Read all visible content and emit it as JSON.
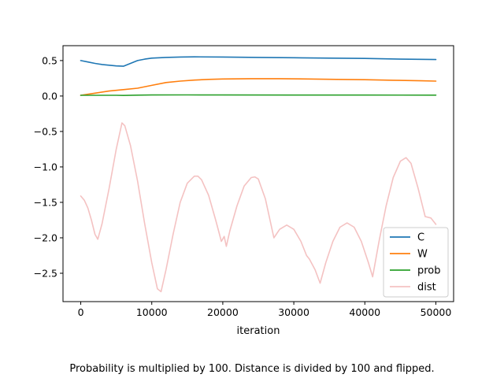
{
  "caption": "Probability is multiplied by 100. Distance is divided by 100 and flipped.",
  "chart_data": {
    "type": "line",
    "xlabel": "iteration",
    "ylabel": "",
    "xlim": [
      -2500,
      52500
    ],
    "ylim": [
      -2.9,
      0.71
    ],
    "x_ticks": [
      0,
      10000,
      20000,
      30000,
      40000,
      50000
    ],
    "y_ticks": [
      0.5,
      0.0,
      -0.5,
      -1.0,
      -1.5,
      -2.0,
      -2.5
    ],
    "legend_position": "lower-right",
    "series": [
      {
        "name": "C",
        "color": "#1f77b4",
        "x": [
          0,
          1000,
          2000,
          3000,
          4000,
          5000,
          6000,
          7000,
          8000,
          9000,
          10000,
          12000,
          14000,
          16000,
          20000,
          25000,
          30000,
          35000,
          40000,
          45000,
          50000
        ],
        "y": [
          0.5,
          0.48,
          0.46,
          0.445,
          0.435,
          0.425,
          0.42,
          0.46,
          0.5,
          0.52,
          0.535,
          0.545,
          0.55,
          0.552,
          0.55,
          0.545,
          0.54,
          0.535,
          0.53,
          0.52,
          0.515
        ]
      },
      {
        "name": "W",
        "color": "#ff7f0e",
        "x": [
          0,
          2000,
          4000,
          6000,
          8000,
          10000,
          12000,
          14000,
          16000,
          18000,
          20000,
          24000,
          28000,
          32000,
          36000,
          40000,
          44000,
          48000,
          50000
        ],
        "y": [
          0.01,
          0.04,
          0.07,
          0.09,
          0.11,
          0.15,
          0.19,
          0.21,
          0.225,
          0.235,
          0.24,
          0.245,
          0.245,
          0.24,
          0.235,
          0.23,
          0.222,
          0.215,
          0.21
        ]
      },
      {
        "name": "prob",
        "color": "#2ca02c",
        "x": [
          0,
          5000,
          6000,
          8000,
          10000,
          15000,
          20000,
          30000,
          40000,
          50000
        ],
        "y": [
          0.01,
          0.01,
          0.008,
          0.012,
          0.015,
          0.016,
          0.015,
          0.014,
          0.013,
          0.012
        ]
      },
      {
        "name": "dist",
        "color": "#f4c2c2",
        "x": [
          0,
          500,
          1000,
          1500,
          2000,
          2400,
          3000,
          4000,
          5000,
          5800,
          6200,
          7000,
          8000,
          9000,
          10000,
          10800,
          11300,
          12000,
          13000,
          14000,
          15000,
          16000,
          16500,
          17000,
          18000,
          19000,
          19800,
          20200,
          20500,
          21000,
          22000,
          23000,
          24000,
          24500,
          25000,
          26000,
          27200,
          28000,
          29000,
          30000,
          31000,
          31800,
          32200,
          33000,
          33700,
          34500,
          35500,
          36500,
          37500,
          38500,
          39500,
          40500,
          41100,
          42000,
          43000,
          44000,
          45000,
          45800,
          46500,
          47500,
          48500,
          49300,
          50000
        ],
        "y": [
          -1.41,
          -1.47,
          -1.58,
          -1.75,
          -1.95,
          -2.02,
          -1.8,
          -1.3,
          -0.75,
          -0.38,
          -0.42,
          -0.7,
          -1.2,
          -1.8,
          -2.35,
          -2.72,
          -2.76,
          -2.45,
          -1.95,
          -1.5,
          -1.23,
          -1.13,
          -1.13,
          -1.18,
          -1.4,
          -1.75,
          -2.05,
          -1.98,
          -2.12,
          -1.9,
          -1.55,
          -1.27,
          -1.15,
          -1.14,
          -1.17,
          -1.45,
          -2.0,
          -1.88,
          -1.82,
          -1.88,
          -2.05,
          -2.25,
          -2.3,
          -2.45,
          -2.64,
          -2.35,
          -2.05,
          -1.85,
          -1.79,
          -1.85,
          -2.05,
          -2.35,
          -2.55,
          -2.05,
          -1.55,
          -1.15,
          -0.92,
          -0.87,
          -0.95,
          -1.3,
          -1.7,
          -1.72,
          -1.81
        ]
      }
    ]
  }
}
